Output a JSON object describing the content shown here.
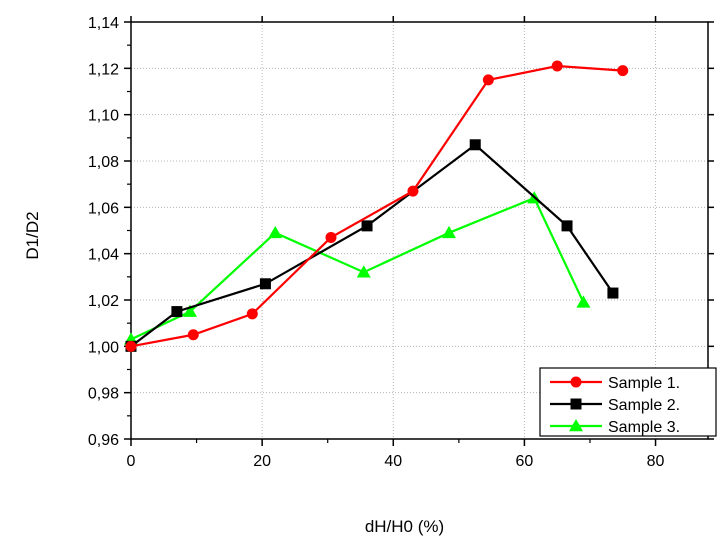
{
  "chart_data": {
    "type": "line",
    "title": "",
    "xlabel": "dH/H0 (%)",
    "ylabel": "D1/D2",
    "xlim": [
      0,
      88
    ],
    "ylim": [
      0.96,
      1.14
    ],
    "x_ticks": [
      "0",
      "20",
      "40",
      "60",
      "80"
    ],
    "y_ticks": [
      "0,96",
      "0,98",
      "1,00",
      "1,02",
      "1,04",
      "1,06",
      "1,08",
      "1,10",
      "1,12",
      "1,14"
    ],
    "grid": true,
    "legend_position": "bottom-right",
    "series": [
      {
        "name": "Sample 1.",
        "color": "#ff0000",
        "marker": "circle",
        "points": [
          [
            0,
            1.0
          ],
          [
            9.5,
            1.005
          ],
          [
            18.5,
            1.014
          ],
          [
            30.5,
            1.047
          ],
          [
            43,
            1.067
          ],
          [
            54.5,
            1.115
          ],
          [
            65,
            1.121
          ],
          [
            75,
            1.119
          ]
        ]
      },
      {
        "name": "Sample 2.",
        "color": "#000000",
        "marker": "square",
        "points": [
          [
            0,
            1.0
          ],
          [
            7,
            1.015
          ],
          [
            20.5,
            1.027
          ],
          [
            36,
            1.052
          ],
          [
            52.5,
            1.087
          ],
          [
            66.5,
            1.052
          ],
          [
            73.5,
            1.023
          ]
        ]
      },
      {
        "name": "Sample 3.",
        "color": "#00ff00",
        "marker": "triangle",
        "points": [
          [
            0,
            1.003
          ],
          [
            9,
            1.015
          ],
          [
            22,
            1.049
          ],
          [
            35.5,
            1.032
          ],
          [
            48.5,
            1.049
          ],
          [
            61.5,
            1.064
          ],
          [
            69,
            1.019
          ]
        ]
      }
    ]
  }
}
